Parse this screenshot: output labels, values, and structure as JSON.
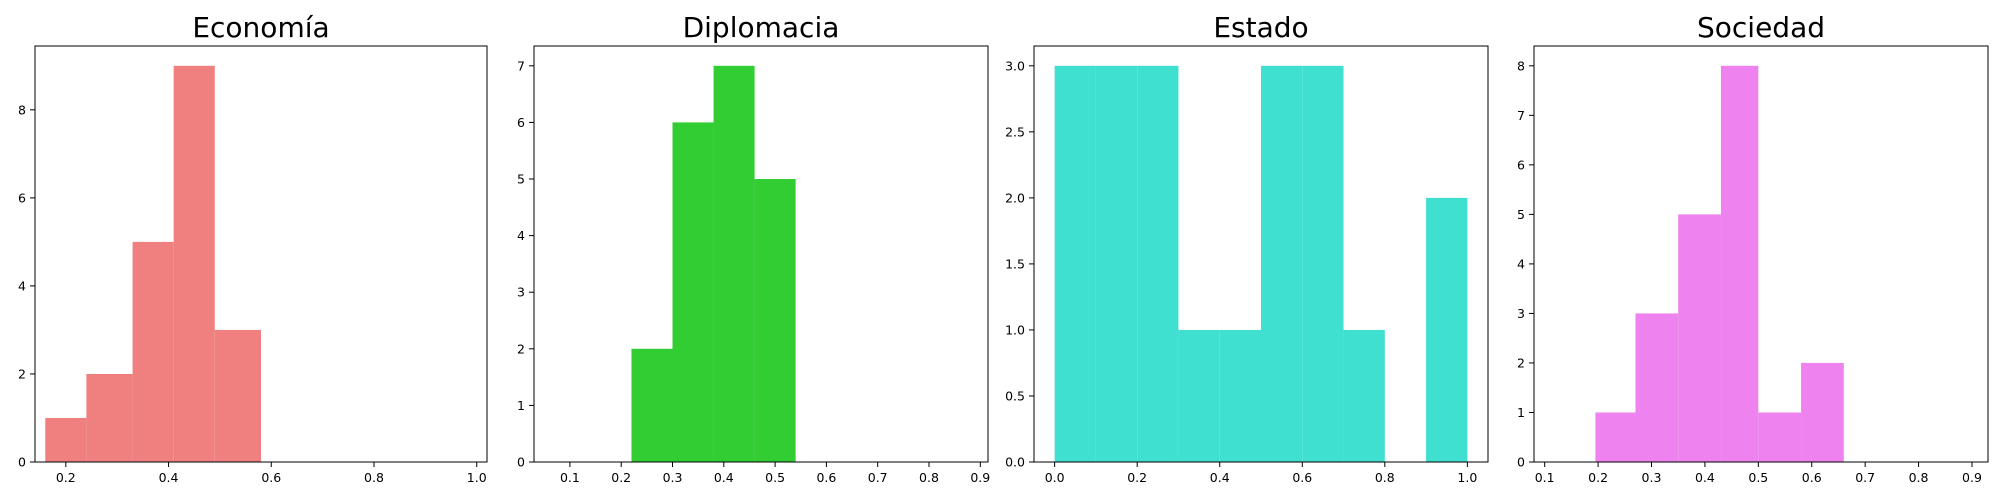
{
  "chart_data": [
    {
      "type": "bar",
      "title": "Economía",
      "color": "#F08080",
      "xlim": [
        0.14,
        1.02
      ],
      "ylim": [
        0,
        9.45
      ],
      "xticks": [
        {
          "value": 0.2,
          "label": "0.2"
        },
        {
          "value": 0.4,
          "label": "0.4"
        },
        {
          "value": 0.6,
          "label": "0.6"
        },
        {
          "value": 0.8,
          "label": "0.8"
        },
        {
          "value": 1.0,
          "label": "1.0"
        }
      ],
      "yticks": [
        {
          "value": 0,
          "label": "0"
        },
        {
          "value": 2,
          "label": "2"
        },
        {
          "value": 4,
          "label": "4"
        },
        {
          "value": 6,
          "label": "6"
        },
        {
          "value": 8,
          "label": "8"
        }
      ],
      "bins": [
        {
          "start": 0.16,
          "end": 0.24,
          "count": 1
        },
        {
          "start": 0.24,
          "end": 0.33,
          "count": 2
        },
        {
          "start": 0.33,
          "end": 0.41,
          "count": 5
        },
        {
          "start": 0.41,
          "end": 0.49,
          "count": 9
        },
        {
          "start": 0.49,
          "end": 0.58,
          "count": 3
        }
      ]
    },
    {
      "type": "bar",
      "title": "Diplomacia",
      "color": "#32CD32",
      "xlim": [
        0.03,
        0.915
      ],
      "ylim": [
        0,
        7.35
      ],
      "xticks": [
        {
          "value": 0.1,
          "label": "0.1"
        },
        {
          "value": 0.2,
          "label": "0.2"
        },
        {
          "value": 0.3,
          "label": "0.3"
        },
        {
          "value": 0.4,
          "label": "0.4"
        },
        {
          "value": 0.5,
          "label": "0.5"
        },
        {
          "value": 0.6,
          "label": "0.6"
        },
        {
          "value": 0.7,
          "label": "0.7"
        },
        {
          "value": 0.8,
          "label": "0.8"
        },
        {
          "value": 0.9,
          "label": "0.9"
        }
      ],
      "yticks": [
        {
          "value": 0,
          "label": "0"
        },
        {
          "value": 1,
          "label": "1"
        },
        {
          "value": 2,
          "label": "2"
        },
        {
          "value": 3,
          "label": "3"
        },
        {
          "value": 4,
          "label": "4"
        },
        {
          "value": 5,
          "label": "5"
        },
        {
          "value": 6,
          "label": "6"
        },
        {
          "value": 7,
          "label": "7"
        }
      ],
      "bins": [
        {
          "start": 0.22,
          "end": 0.3,
          "count": 2
        },
        {
          "start": 0.3,
          "end": 0.38,
          "count": 6
        },
        {
          "start": 0.38,
          "end": 0.46,
          "count": 7
        },
        {
          "start": 0.46,
          "end": 0.54,
          "count": 5
        }
      ]
    },
    {
      "type": "bar",
      "title": "Estado",
      "color": "#40E0D0",
      "xlim": [
        -0.05,
        1.05
      ],
      "ylim": [
        0,
        3.15
      ],
      "xticks": [
        {
          "value": 0.0,
          "label": "0.0"
        },
        {
          "value": 0.2,
          "label": "0.2"
        },
        {
          "value": 0.4,
          "label": "0.4"
        },
        {
          "value": 0.6,
          "label": "0.6"
        },
        {
          "value": 0.8,
          "label": "0.8"
        },
        {
          "value": 1.0,
          "label": "1.0"
        }
      ],
      "yticks": [
        {
          "value": 0.0,
          "label": "0.0"
        },
        {
          "value": 0.5,
          "label": "0.5"
        },
        {
          "value": 1.0,
          "label": "1.0"
        },
        {
          "value": 1.5,
          "label": "1.5"
        },
        {
          "value": 2.0,
          "label": "2.0"
        },
        {
          "value": 2.5,
          "label": "2.5"
        },
        {
          "value": 3.0,
          "label": "3.0"
        }
      ],
      "bins": [
        {
          "start": 0.0,
          "end": 0.1,
          "count": 3
        },
        {
          "start": 0.1,
          "end": 0.2,
          "count": 3
        },
        {
          "start": 0.2,
          "end": 0.3,
          "count": 3
        },
        {
          "start": 0.3,
          "end": 0.4,
          "count": 1
        },
        {
          "start": 0.4,
          "end": 0.5,
          "count": 1
        },
        {
          "start": 0.5,
          "end": 0.6,
          "count": 3
        },
        {
          "start": 0.6,
          "end": 0.7,
          "count": 3
        },
        {
          "start": 0.7,
          "end": 0.8,
          "count": 1
        },
        {
          "start": 0.9,
          "end": 1.0,
          "count": 2
        }
      ]
    },
    {
      "type": "bar",
      "title": "Sociedad",
      "color": "#EE82EE",
      "xlim": [
        0.08,
        0.93
      ],
      "ylim": [
        0,
        8.4
      ],
      "xticks": [
        {
          "value": 0.1,
          "label": "0.1"
        },
        {
          "value": 0.2,
          "label": "0.2"
        },
        {
          "value": 0.3,
          "label": "0.3"
        },
        {
          "value": 0.4,
          "label": "0.4"
        },
        {
          "value": 0.5,
          "label": "0.5"
        },
        {
          "value": 0.6,
          "label": "0.6"
        },
        {
          "value": 0.7,
          "label": "0.7"
        },
        {
          "value": 0.8,
          "label": "0.8"
        },
        {
          "value": 0.9,
          "label": "0.9"
        }
      ],
      "yticks": [
        {
          "value": 0,
          "label": "0"
        },
        {
          "value": 1,
          "label": "1"
        },
        {
          "value": 2,
          "label": "2"
        },
        {
          "value": 3,
          "label": "3"
        },
        {
          "value": 4,
          "label": "4"
        },
        {
          "value": 5,
          "label": "5"
        },
        {
          "value": 6,
          "label": "6"
        },
        {
          "value": 7,
          "label": "7"
        },
        {
          "value": 8,
          "label": "8"
        }
      ],
      "bins": [
        {
          "start": 0.195,
          "end": 0.27,
          "count": 1
        },
        {
          "start": 0.27,
          "end": 0.35,
          "count": 3
        },
        {
          "start": 0.35,
          "end": 0.43,
          "count": 5
        },
        {
          "start": 0.43,
          "end": 0.5,
          "count": 8
        },
        {
          "start": 0.5,
          "end": 0.58,
          "count": 1
        },
        {
          "start": 0.58,
          "end": 0.66,
          "count": 2
        }
      ]
    }
  ]
}
